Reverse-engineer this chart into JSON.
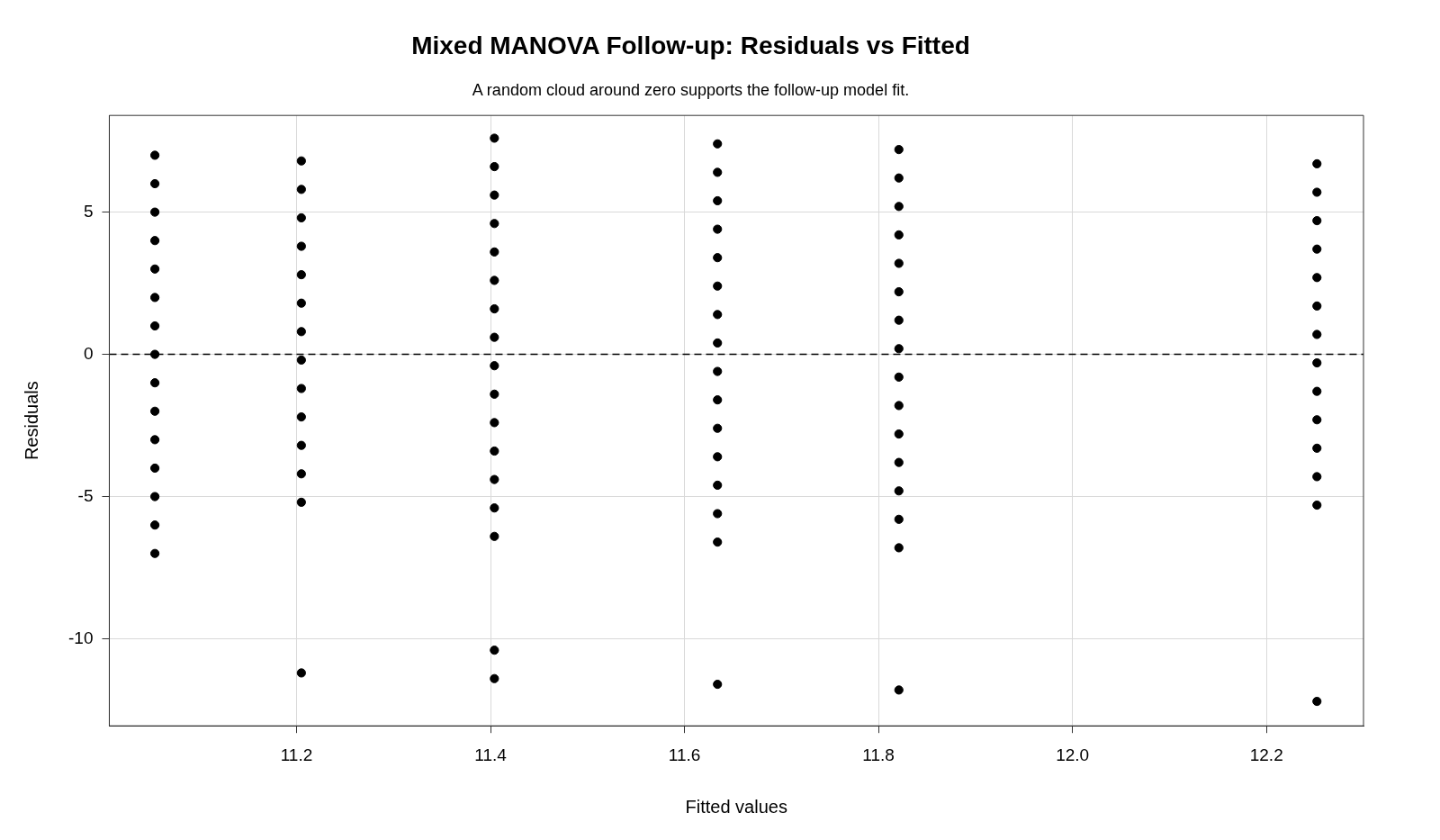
{
  "chart_data": {
    "type": "scatter",
    "title": "Mixed MANOVA Follow-up: Residuals vs Fitted",
    "subtitle": "A random cloud around zero supports the follow-up model fit.",
    "xlabel": "Fitted values",
    "ylabel": "Residuals",
    "series": [
      {
        "color": "#000000",
        "x": [
          11.054,
          11.054,
          11.054,
          11.054,
          11.054,
          11.054,
          11.054,
          11.054,
          11.054,
          11.054,
          11.054,
          11.054,
          11.054,
          11.054,
          11.054,
          11.205,
          11.205,
          11.205,
          11.205,
          11.205,
          11.205,
          11.205,
          11.205,
          11.205,
          11.205,
          11.205,
          11.205,
          11.205,
          11.205,
          11.404,
          11.404,
          11.404,
          11.404,
          11.404,
          11.404,
          11.404,
          11.404,
          11.404,
          11.404,
          11.404,
          11.404,
          11.404,
          11.404,
          11.404,
          11.404,
          11.404,
          11.634,
          11.634,
          11.634,
          11.634,
          11.634,
          11.634,
          11.634,
          11.634,
          11.634,
          11.634,
          11.634,
          11.634,
          11.634,
          11.634,
          11.634,
          11.634,
          11.821,
          11.821,
          11.821,
          11.821,
          11.821,
          11.821,
          11.821,
          11.821,
          11.821,
          11.821,
          11.821,
          11.821,
          11.821,
          11.821,
          11.821,
          11.821,
          12.252,
          12.252,
          12.252,
          12.252,
          12.252,
          12.252,
          12.252,
          12.252,
          12.252,
          12.252,
          12.252,
          12.252,
          12.252,
          12.252
        ],
        "values": [
          7,
          6,
          5,
          4,
          3,
          2,
          1,
          0,
          -1,
          -2,
          -3,
          -4,
          -5,
          -6,
          -7,
          6.8,
          5.8,
          4.8,
          3.8,
          2.8,
          1.8,
          0.8,
          -0.2,
          -1.2,
          -2.2,
          -3.2,
          -4.2,
          -5.2,
          -11.2,
          7.6,
          6.6,
          5.6,
          4.6,
          3.6,
          2.6,
          1.6,
          0.6,
          -0.4,
          -1.4,
          -2.4,
          -3.4,
          -4.4,
          -5.4,
          -6.4,
          -10.4,
          -11.4,
          7.4,
          6.4,
          5.4,
          4.4,
          3.4,
          2.4,
          1.4,
          0.4,
          -0.6,
          -1.6,
          -2.6,
          -3.6,
          -4.6,
          -5.6,
          -6.6,
          -11.6,
          7.2,
          6.2,
          5.2,
          4.2,
          3.2,
          2.2,
          1.2,
          0.2,
          -0.8,
          -1.8,
          -2.8,
          -3.8,
          -4.8,
          -5.8,
          -6.8,
          -11.8,
          6.7,
          5.7,
          4.7,
          3.7,
          2.7,
          1.7,
          0.7,
          -0.3,
          -1.3,
          -2.3,
          -3.3,
          -4.3,
          -5.3,
          -12.2
        ]
      }
    ],
    "xlim": [
      11.007,
      12.3
    ],
    "ylim": [
      -13.06,
      8.4
    ],
    "xticks": [
      {
        "value": 11.2,
        "label": "11.2"
      },
      {
        "value": 11.4,
        "label": "11.4"
      },
      {
        "value": 11.6,
        "label": "11.6"
      },
      {
        "value": 11.8,
        "label": "11.8"
      },
      {
        "value": 12,
        "label": "12.0"
      },
      {
        "value": 12.2,
        "label": "12.2"
      }
    ],
    "yticks": [
      -10,
      -5,
      0,
      5
    ],
    "ref_lines": [
      {
        "axis": "y",
        "value": 0,
        "color": "#000000",
        "line_style": "dashed"
      }
    ],
    "grid": true,
    "marker": "circle",
    "legend": false
  }
}
